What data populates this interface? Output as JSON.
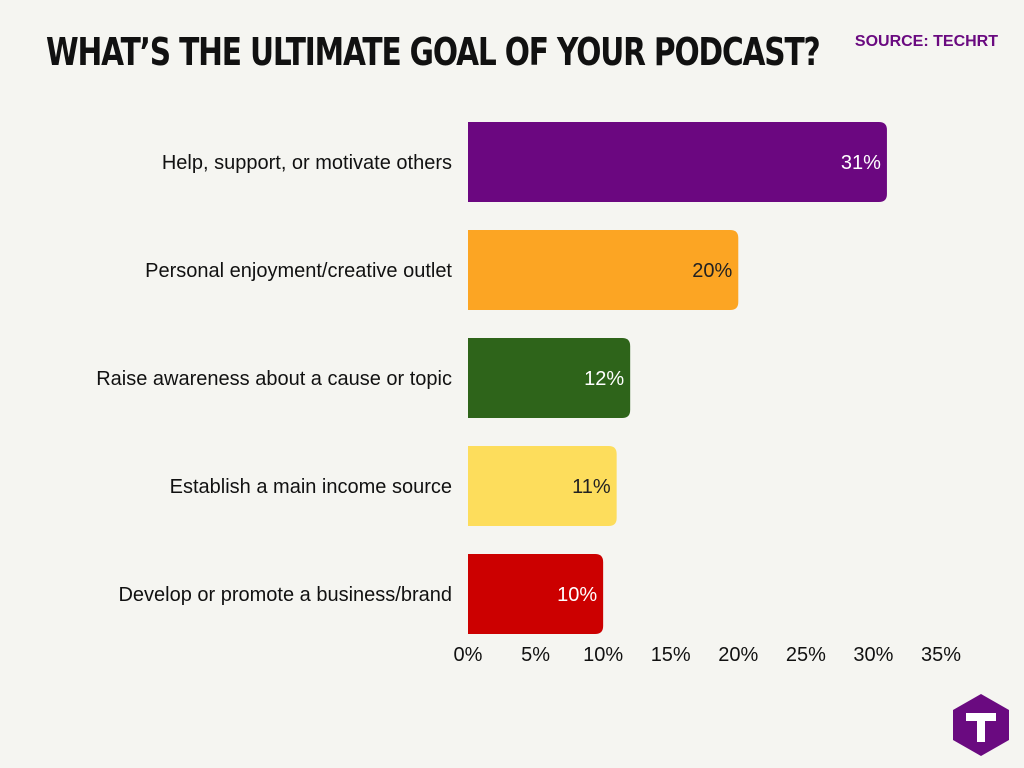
{
  "title": "WHAT’S THE ULTIMATE GOAL OF YOUR PODCAST?",
  "source": "SOURCE: TECHRT",
  "logo_letter": "T",
  "logo_color": "#6a0a80",
  "chart_data": {
    "type": "bar",
    "orientation": "horizontal",
    "categories": [
      "Help, support, or motivate others",
      "Personal enjoyment/creative outlet",
      "Raise awareness about a cause or topic",
      "Establish a main income source",
      "Develop or promote a business/brand"
    ],
    "values": [
      31,
      20,
      12,
      11,
      10
    ],
    "value_labels": [
      "31%",
      "20%",
      "12%",
      "11%",
      "10%"
    ],
    "colors": [
      "#6b0780",
      "#fca523",
      "#2e641a",
      "#fddd5c",
      "#cc0000"
    ],
    "label_colors": [
      "#ffffff",
      "#222222",
      "#ffffff",
      "#222222",
      "#ffffff"
    ],
    "xlim": [
      0,
      35
    ],
    "xticks": [
      0,
      5,
      10,
      15,
      20,
      25,
      30,
      35
    ],
    "xtick_labels": [
      "0%",
      "5%",
      "10%",
      "15%",
      "20%",
      "25%",
      "30%",
      "35%"
    ],
    "grid": false
  }
}
